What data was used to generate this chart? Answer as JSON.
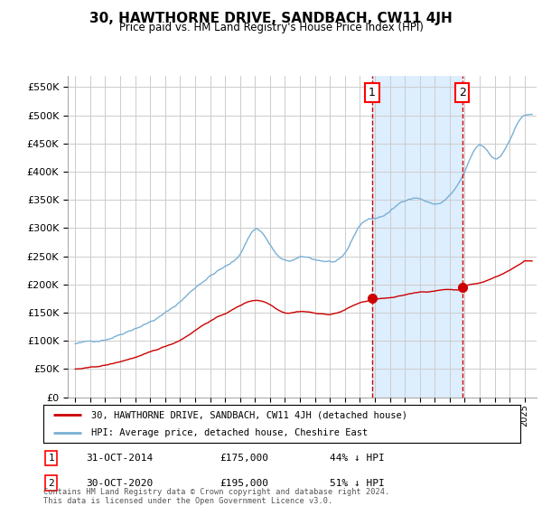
{
  "title": "30, HAWTHORNE DRIVE, SANDBACH, CW11 4JH",
  "subtitle": "Price paid vs. HM Land Registry's House Price Index (HPI)",
  "legend_label_red": "30, HAWTHORNE DRIVE, SANDBACH, CW11 4JH (detached house)",
  "legend_label_blue": "HPI: Average price, detached house, Cheshire East",
  "annotation1_date": "31-OCT-2014",
  "annotation1_price": "£175,000",
  "annotation1_pct": "44% ↓ HPI",
  "annotation1_year": 2014.83,
  "annotation1_value_red": 175000,
  "annotation2_date": "30-OCT-2020",
  "annotation2_price": "£195,000",
  "annotation2_pct": "51% ↓ HPI",
  "annotation2_year": 2020.83,
  "annotation2_value_red": 195000,
  "footer": "Contains HM Land Registry data © Crown copyright and database right 2024.\nThis data is licensed under the Open Government Licence v3.0.",
  "ylim": [
    0,
    570000
  ],
  "yticks": [
    0,
    50000,
    100000,
    150000,
    200000,
    250000,
    300000,
    350000,
    400000,
    450000,
    500000,
    550000
  ],
  "ytick_labels": [
    "£0",
    "£50K",
    "£100K",
    "£150K",
    "£200K",
    "£250K",
    "£300K",
    "£350K",
    "£400K",
    "£450K",
    "£500K",
    "£550K"
  ],
  "background_color": "#ffffff",
  "grid_color": "#cccccc",
  "red_color": "#cc0000",
  "blue_color": "#7ab0d4",
  "shade_color": "#ddeeff",
  "fig_width": 6.0,
  "fig_height": 5.6,
  "dpi": 100
}
